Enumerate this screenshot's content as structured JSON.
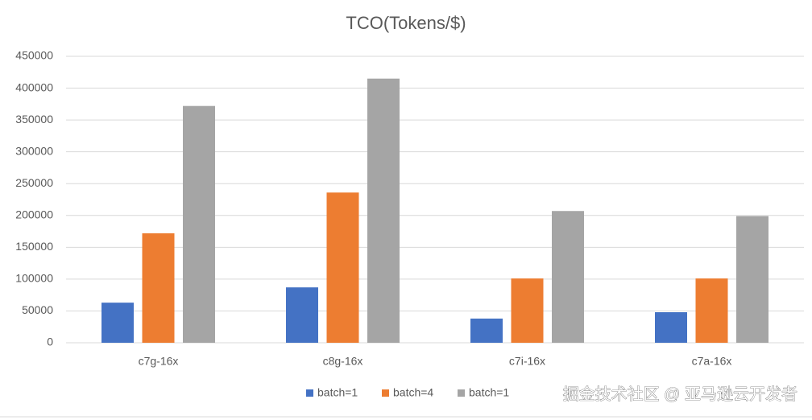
{
  "chart_data": {
    "type": "bar",
    "title": "TCO(Tokens/$)",
    "categories": [
      "c7g-16x",
      "c8g-16x",
      "c7i-16x",
      "c7a-16x"
    ],
    "series": [
      {
        "name": "batch=1",
        "color": "#4472c4",
        "values": [
          63000,
          87000,
          38000,
          48000
        ]
      },
      {
        "name": "batch=4",
        "color": "#ed7d31",
        "values": [
          172000,
          236000,
          101000,
          101000
        ]
      },
      {
        "name": "batch=1",
        "color": "#a5a5a5",
        "values": [
          372000,
          415000,
          207000,
          199000
        ]
      }
    ],
    "ylim": [
      0,
      450000
    ],
    "yticks": [
      0,
      50000,
      100000,
      150000,
      200000,
      250000,
      300000,
      350000,
      400000,
      450000
    ],
    "grid": true,
    "legend": "bottom",
    "annotation": "掘金技术社区 @ 亚马逊云开发者"
  }
}
